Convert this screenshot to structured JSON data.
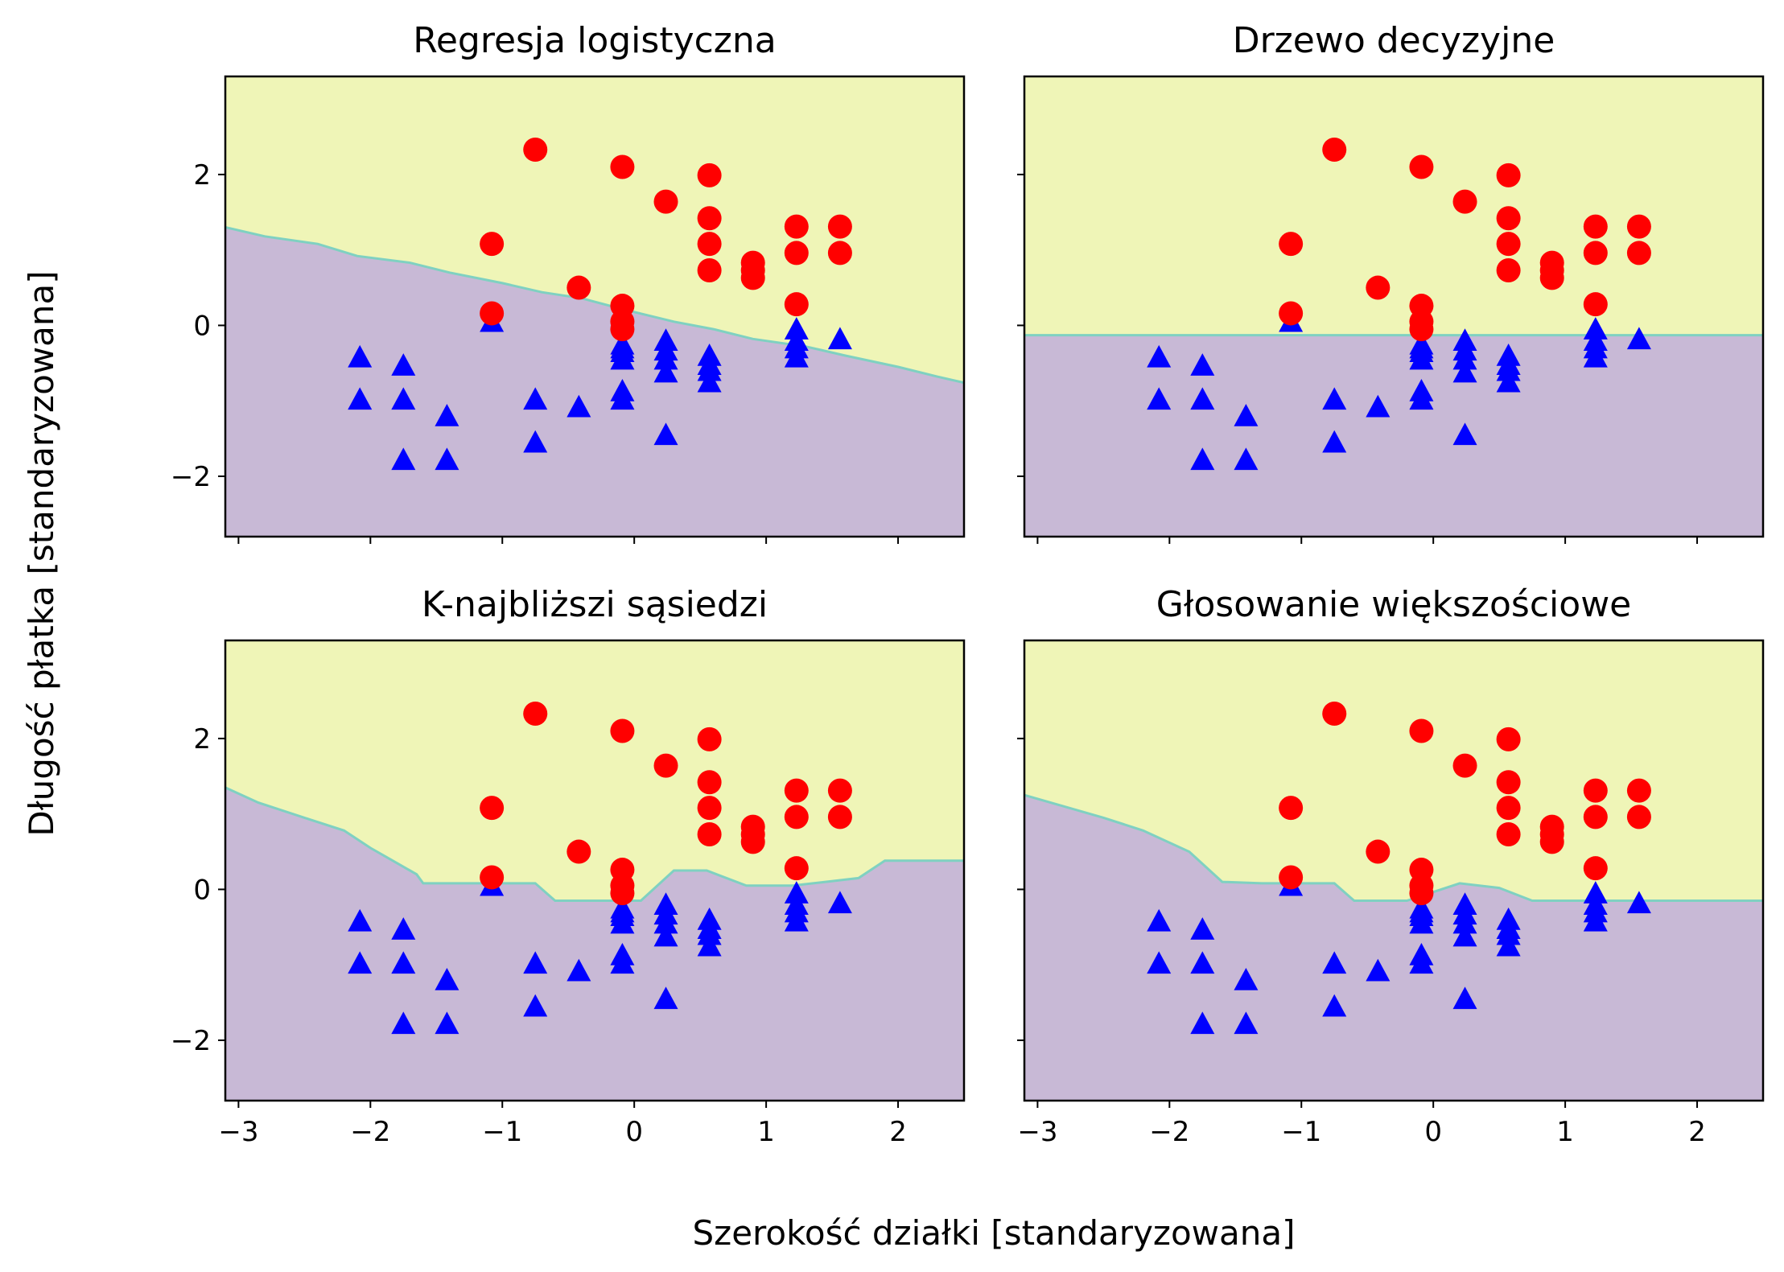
{
  "figure": {
    "xlabel": "Szerokość działki [standaryzowana]",
    "ylabel": "Długość płatka [standaryzowana]"
  },
  "chart_data": [
    {
      "type": "scatter",
      "title": "Regresja logistyczna",
      "xlim": [
        -3.1,
        2.5
      ],
      "ylim": [
        -2.8,
        3.3
      ],
      "xticks": [
        -3,
        -2,
        -1,
        0,
        1,
        2
      ],
      "yticks": [
        -2,
        0,
        2
      ],
      "xtick_labels_visible": false,
      "ytick_labels_visible": true,
      "decision_boundary": {
        "x": [
          -3.1,
          -2.8,
          -2.4,
          -2.1,
          -1.7,
          -1.4,
          -1.0,
          -0.7,
          -0.4,
          -0.1,
          0.3,
          0.6,
          0.9,
          1.3,
          1.6,
          2.0,
          2.3,
          2.5
        ],
        "y": [
          1.3,
          1.18,
          1.08,
          0.92,
          0.83,
          0.7,
          0.56,
          0.44,
          0.36,
          0.22,
          0.05,
          -0.05,
          -0.18,
          -0.28,
          -0.4,
          -0.55,
          -0.68,
          -0.76
        ]
      },
      "regions": [
        {
          "name": "class 0",
          "color": "#c8b9d6"
        },
        {
          "name": "class 1",
          "color": "#eff5b7"
        }
      ]
    },
    {
      "type": "scatter",
      "title": "Drzewo decyzyjne",
      "xlim": [
        -3.1,
        2.5
      ],
      "ylim": [
        -2.8,
        3.3
      ],
      "xticks": [
        -3,
        -2,
        -1,
        0,
        1,
        2
      ],
      "yticks": [
        -2,
        0,
        2
      ],
      "xtick_labels_visible": false,
      "ytick_labels_visible": false,
      "decision_boundary": {
        "x": [
          -3.1,
          2.5
        ],
        "y": [
          -0.13,
          -0.13
        ]
      },
      "regions": [
        {
          "name": "class 0",
          "color": "#c8b9d6"
        },
        {
          "name": "class 1",
          "color": "#eff5b7"
        }
      ]
    },
    {
      "type": "scatter",
      "title": "K-najbliższi sąsiedzi",
      "xlim": [
        -3.1,
        2.5
      ],
      "ylim": [
        -2.8,
        3.3
      ],
      "xticks": [
        -3,
        -2,
        -1,
        0,
        1,
        2
      ],
      "yticks": [
        -2,
        0,
        2
      ],
      "xtick_labels_visible": true,
      "ytick_labels_visible": true,
      "decision_boundary": {
        "x": [
          -3.1,
          -2.85,
          -2.5,
          -2.2,
          -2.0,
          -1.85,
          -1.65,
          -1.6,
          -1.35,
          -0.75,
          -0.6,
          -0.35,
          -0.15,
          0.05,
          0.3,
          0.55,
          0.85,
          1.2,
          1.45,
          1.7,
          1.9,
          2.5
        ],
        "y": [
          1.35,
          1.15,
          0.95,
          0.78,
          0.55,
          0.4,
          0.2,
          0.08,
          0.08,
          0.08,
          -0.15,
          -0.15,
          -0.15,
          -0.15,
          0.25,
          0.25,
          0.05,
          0.05,
          0.1,
          0.15,
          0.38,
          0.38
        ]
      },
      "regions": [
        {
          "name": "class 0",
          "color": "#c8b9d6"
        },
        {
          "name": "class 1",
          "color": "#eff5b7"
        }
      ]
    },
    {
      "type": "scatter",
      "title": "Głosowanie większościowe",
      "xlim": [
        -3.1,
        2.5
      ],
      "ylim": [
        -2.8,
        3.3
      ],
      "xticks": [
        -3,
        -2,
        -1,
        0,
        1,
        2
      ],
      "yticks": [
        -2,
        0,
        2
      ],
      "xtick_labels_visible": true,
      "ytick_labels_visible": false,
      "decision_boundary": {
        "x": [
          -3.1,
          -2.8,
          -2.5,
          -2.2,
          -1.85,
          -1.6,
          -1.3,
          -0.75,
          -0.6,
          -0.2,
          0.2,
          0.5,
          0.75,
          1.1,
          1.5,
          2.5
        ],
        "y": [
          1.25,
          1.1,
          0.95,
          0.78,
          0.5,
          0.1,
          0.08,
          0.08,
          -0.15,
          -0.15,
          0.08,
          0.02,
          -0.15,
          -0.15,
          -0.15,
          -0.15
        ]
      },
      "regions": [
        {
          "name": "class 0",
          "color": "#c8b9d6"
        },
        {
          "name": "class 1",
          "color": "#eff5b7"
        }
      ]
    }
  ],
  "points": {
    "class0": {
      "marker": "triangle",
      "color": "#0000ff",
      "x": [
        -2.08,
        -2.08,
        -1.75,
        -1.75,
        -1.75,
        -1.42,
        -1.42,
        -1.08,
        -0.75,
        -0.75,
        -0.42,
        -0.09,
        -0.09,
        -0.09,
        -0.09,
        -0.09,
        -0.09,
        0.24,
        0.24,
        0.24,
        0.24,
        0.24,
        0.57,
        0.57,
        0.57,
        0.57,
        1.23,
        1.23,
        1.23,
        1.23,
        1.56
      ],
      "y": [
        -0.42,
        -0.98,
        -0.53,
        -0.98,
        -1.78,
        -1.2,
        -1.78,
        0.05,
        -0.98,
        -1.55,
        -1.08,
        -0.25,
        -0.35,
        -0.45,
        -0.87,
        -0.98,
        -0.3,
        -0.2,
        -0.33,
        -0.45,
        -0.62,
        -1.45,
        -0.4,
        -0.52,
        -0.6,
        -0.75,
        -0.05,
        -0.2,
        -0.3,
        -0.42,
        -0.18
      ]
    },
    "class1": {
      "marker": "circle",
      "color": "#ff0000",
      "x": [
        -1.08,
        -1.08,
        -0.75,
        -0.42,
        -0.09,
        -0.09,
        -0.09,
        -0.09,
        0.24,
        0.57,
        0.57,
        0.57,
        0.57,
        0.9,
        0.9,
        0.9,
        1.23,
        1.23,
        1.23,
        1.56,
        1.56
      ],
      "y": [
        1.08,
        0.16,
        2.33,
        0.5,
        2.1,
        0.26,
        0.05,
        -0.05,
        1.64,
        1.99,
        1.42,
        1.08,
        0.73,
        0.83,
        0.73,
        0.63,
        1.31,
        0.96,
        0.28,
        1.31,
        0.96
      ]
    }
  }
}
